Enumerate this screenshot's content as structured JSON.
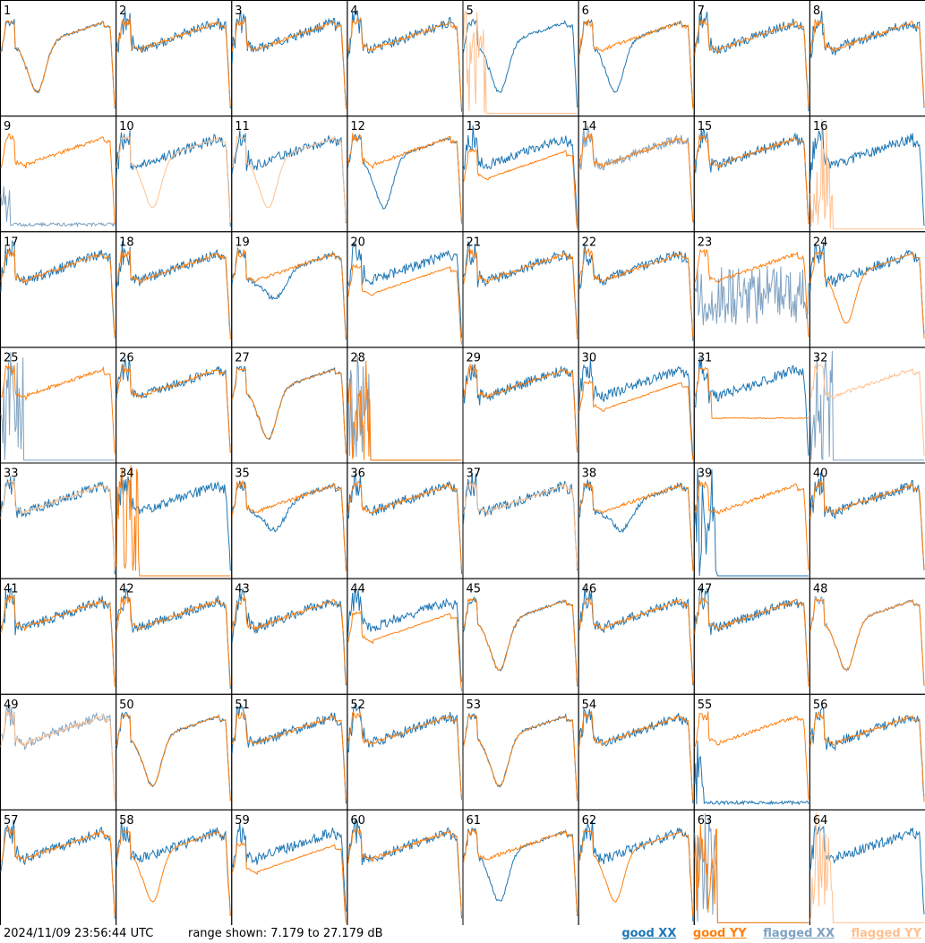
{
  "footer": {
    "timestamp": "2024/11/09 23:56:44 UTC",
    "range_text": "range shown: 7.179 to 27.179 dB"
  },
  "legend": {
    "good_xx": "good XX",
    "good_yy": "good YY",
    "flagged_xx": "flagged XX",
    "flagged_yy": "flagged YY"
  },
  "colors": {
    "good_xx": "#1f77b4",
    "good_yy": "#ff7f0e",
    "flagged_xx": "#7fa2c2",
    "flagged_yy": "#ffc08f"
  },
  "chart_data": {
    "type": "line",
    "layout": "8x8 small multiples",
    "ylim": [
      7.179,
      27.179
    ],
    "yunit": "dB",
    "panels": [
      {
        "label": "1",
        "xx": "good",
        "yy": "good",
        "shape": "dip_deep"
      },
      {
        "label": "2",
        "xx": "good",
        "yy": "good",
        "shape": "normal"
      },
      {
        "label": "3",
        "xx": "good",
        "yy": "good",
        "shape": "normal"
      },
      {
        "label": "4",
        "xx": "good",
        "yy": "good",
        "shape": "normal"
      },
      {
        "label": "5",
        "xx": "good",
        "yy": "flagged",
        "shape": "xx_dip_yy_low"
      },
      {
        "label": "6",
        "xx": "good",
        "yy": "good",
        "shape": "xx_dip"
      },
      {
        "label": "7",
        "xx": "good",
        "yy": "good",
        "shape": "normal"
      },
      {
        "label": "8",
        "xx": "good",
        "yy": "good",
        "shape": "normal"
      },
      {
        "label": "9",
        "xx": "flagged",
        "yy": "good",
        "shape": "xx_low"
      },
      {
        "label": "10",
        "xx": "good",
        "yy": "flagged",
        "shape": "yy_dip"
      },
      {
        "label": "11",
        "xx": "good",
        "yy": "flagged",
        "shape": "yy_dip"
      },
      {
        "label": "12",
        "xx": "good",
        "yy": "good",
        "shape": "xx_dip"
      },
      {
        "label": "13",
        "xx": "good",
        "yy": "good",
        "shape": "yy_lower"
      },
      {
        "label": "14",
        "xx": "flagged",
        "yy": "good",
        "shape": "normal"
      },
      {
        "label": "15",
        "xx": "good",
        "yy": "good",
        "shape": "normal"
      },
      {
        "label": "16",
        "xx": "good",
        "yy": "flagged",
        "shape": "xx_only"
      },
      {
        "label": "17",
        "xx": "good",
        "yy": "good",
        "shape": "normal"
      },
      {
        "label": "18",
        "xx": "good",
        "yy": "good",
        "shape": "normal"
      },
      {
        "label": "19",
        "xx": "good",
        "yy": "good",
        "shape": "xx_dip_small"
      },
      {
        "label": "20",
        "xx": "good",
        "yy": "good",
        "shape": "yy_lower"
      },
      {
        "label": "21",
        "xx": "good",
        "yy": "good",
        "shape": "normal"
      },
      {
        "label": "22",
        "xx": "good",
        "yy": "good",
        "shape": "normal"
      },
      {
        "label": "23",
        "xx": "flagged",
        "yy": "good",
        "shape": "xx_noisy"
      },
      {
        "label": "24",
        "xx": "good",
        "yy": "good",
        "shape": "yy_dip"
      },
      {
        "label": "25",
        "xx": "flagged",
        "yy": "good",
        "shape": "yy_only"
      },
      {
        "label": "26",
        "xx": "good",
        "yy": "good",
        "shape": "normal"
      },
      {
        "label": "27",
        "xx": "good",
        "yy": "good",
        "shape": "dip_both"
      },
      {
        "label": "28",
        "xx": "flagged",
        "yy": "good",
        "shape": "dead"
      },
      {
        "label": "29",
        "xx": "good",
        "yy": "good",
        "shape": "normal"
      },
      {
        "label": "30",
        "xx": "good",
        "yy": "good",
        "shape": "yy_lower"
      },
      {
        "label": "31",
        "xx": "good",
        "yy": "good",
        "shape": "yy_low_flat"
      },
      {
        "label": "32",
        "xx": "flagged",
        "yy": "flagged",
        "shape": "yy_only"
      },
      {
        "label": "33",
        "xx": "good",
        "yy": "flagged",
        "shape": "normal"
      },
      {
        "label": "34",
        "xx": "good",
        "yy": "good",
        "shape": "yy_dead"
      },
      {
        "label": "35",
        "xx": "good",
        "yy": "good",
        "shape": "xx_dip_small"
      },
      {
        "label": "36",
        "xx": "good",
        "yy": "good",
        "shape": "normal"
      },
      {
        "label": "37",
        "xx": "good",
        "yy": "flagged",
        "shape": "normal"
      },
      {
        "label": "38",
        "xx": "good",
        "yy": "good",
        "shape": "xx_dip_small"
      },
      {
        "label": "39",
        "xx": "good",
        "yy": "good",
        "shape": "yy_only"
      },
      {
        "label": "40",
        "xx": "good",
        "yy": "good",
        "shape": "normal"
      },
      {
        "label": "41",
        "xx": "good",
        "yy": "good",
        "shape": "normal"
      },
      {
        "label": "42",
        "xx": "good",
        "yy": "good",
        "shape": "normal"
      },
      {
        "label": "43",
        "xx": "good",
        "yy": "good",
        "shape": "normal"
      },
      {
        "label": "44",
        "xx": "good",
        "yy": "good",
        "shape": "yy_lower"
      },
      {
        "label": "45",
        "xx": "good",
        "yy": "good",
        "shape": "dip_both"
      },
      {
        "label": "46",
        "xx": "good",
        "yy": "good",
        "shape": "normal"
      },
      {
        "label": "47",
        "xx": "good",
        "yy": "good",
        "shape": "normal"
      },
      {
        "label": "48",
        "xx": "flagged",
        "yy": "good",
        "shape": "dip_both"
      },
      {
        "label": "49",
        "xx": "flagged",
        "yy": "flagged",
        "shape": "normal"
      },
      {
        "label": "50",
        "xx": "good",
        "yy": "good",
        "shape": "dip_both"
      },
      {
        "label": "51",
        "xx": "good",
        "yy": "good",
        "shape": "normal"
      },
      {
        "label": "52",
        "xx": "good",
        "yy": "good",
        "shape": "normal"
      },
      {
        "label": "53",
        "xx": "good",
        "yy": "good",
        "shape": "dip_deep"
      },
      {
        "label": "54",
        "xx": "good",
        "yy": "good",
        "shape": "normal"
      },
      {
        "label": "55",
        "xx": "good",
        "yy": "good",
        "shape": "xx_low"
      },
      {
        "label": "56",
        "xx": "good",
        "yy": "good",
        "shape": "normal"
      },
      {
        "label": "57",
        "xx": "good",
        "yy": "good",
        "shape": "normal"
      },
      {
        "label": "58",
        "xx": "good",
        "yy": "good",
        "shape": "yy_dip"
      },
      {
        "label": "59",
        "xx": "good",
        "yy": "good",
        "shape": "yy_lower"
      },
      {
        "label": "60",
        "xx": "good",
        "yy": "good",
        "shape": "normal"
      },
      {
        "label": "61",
        "xx": "good",
        "yy": "good",
        "shape": "xx_dip"
      },
      {
        "label": "62",
        "xx": "good",
        "yy": "good",
        "shape": "yy_dip"
      },
      {
        "label": "63",
        "xx": "flagged",
        "yy": "good",
        "shape": "dead"
      },
      {
        "label": "64",
        "xx": "good",
        "yy": "flagged",
        "shape": "xx_only"
      }
    ]
  }
}
